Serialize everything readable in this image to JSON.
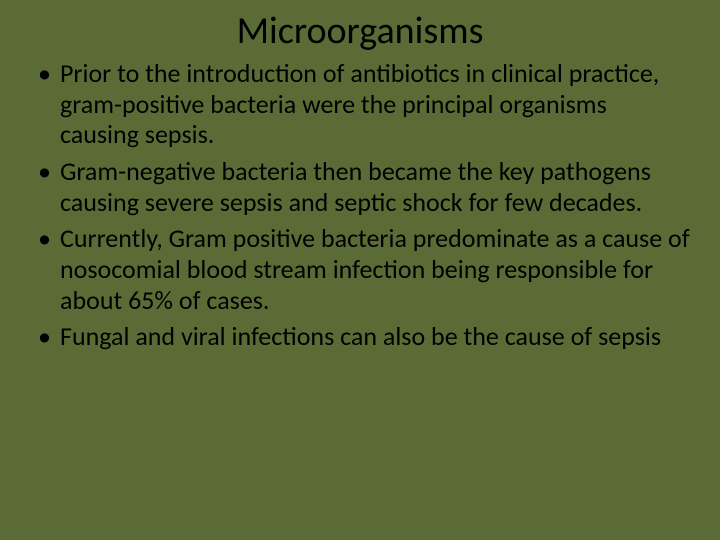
{
  "slide": {
    "background_color": "#5b6b35",
    "text_color": "#000000",
    "title": {
      "text": "Microorganisms",
      "fontsize": 38,
      "font_weight": 400
    },
    "body_fontsize": 26,
    "line_height": 1.18,
    "bullets": [
      "Prior to the introduction of antibiotics in clinical practice, gram-positive bacteria were the principal organisms causing sepsis.",
      "Gram-negative bacteria then became the key pathogens causing severe sepsis and septic shock for few decades.",
      "Currently, Gram positive bacteria predominate as a cause of nosocomial blood stream infection being responsible for about 65% of cases.",
      "Fungal and viral infections can also be the cause of sepsis"
    ]
  }
}
